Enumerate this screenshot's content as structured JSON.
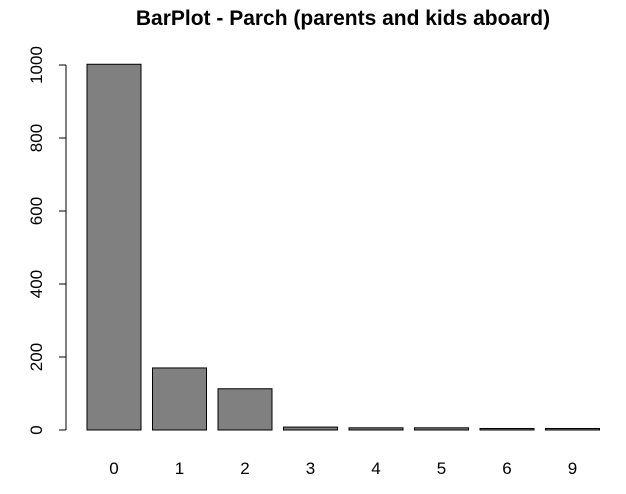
{
  "chart_data": {
    "type": "bar",
    "title": "BarPlot - Parch (parents and kids aboard)",
    "xlabel": "",
    "ylabel": "",
    "categories": [
      "0",
      "1",
      "2",
      "3",
      "4",
      "5",
      "6",
      "9"
    ],
    "values": [
      1002,
      170,
      113,
      8,
      6,
      6,
      2,
      2
    ],
    "ylim": [
      0,
      1000
    ],
    "yticks": [
      "0",
      "200",
      "400",
      "600",
      "800",
      "1000"
    ],
    "grid": false,
    "legend": "none",
    "bar_color": "#808080",
    "bar_edge_color": "#000000"
  }
}
